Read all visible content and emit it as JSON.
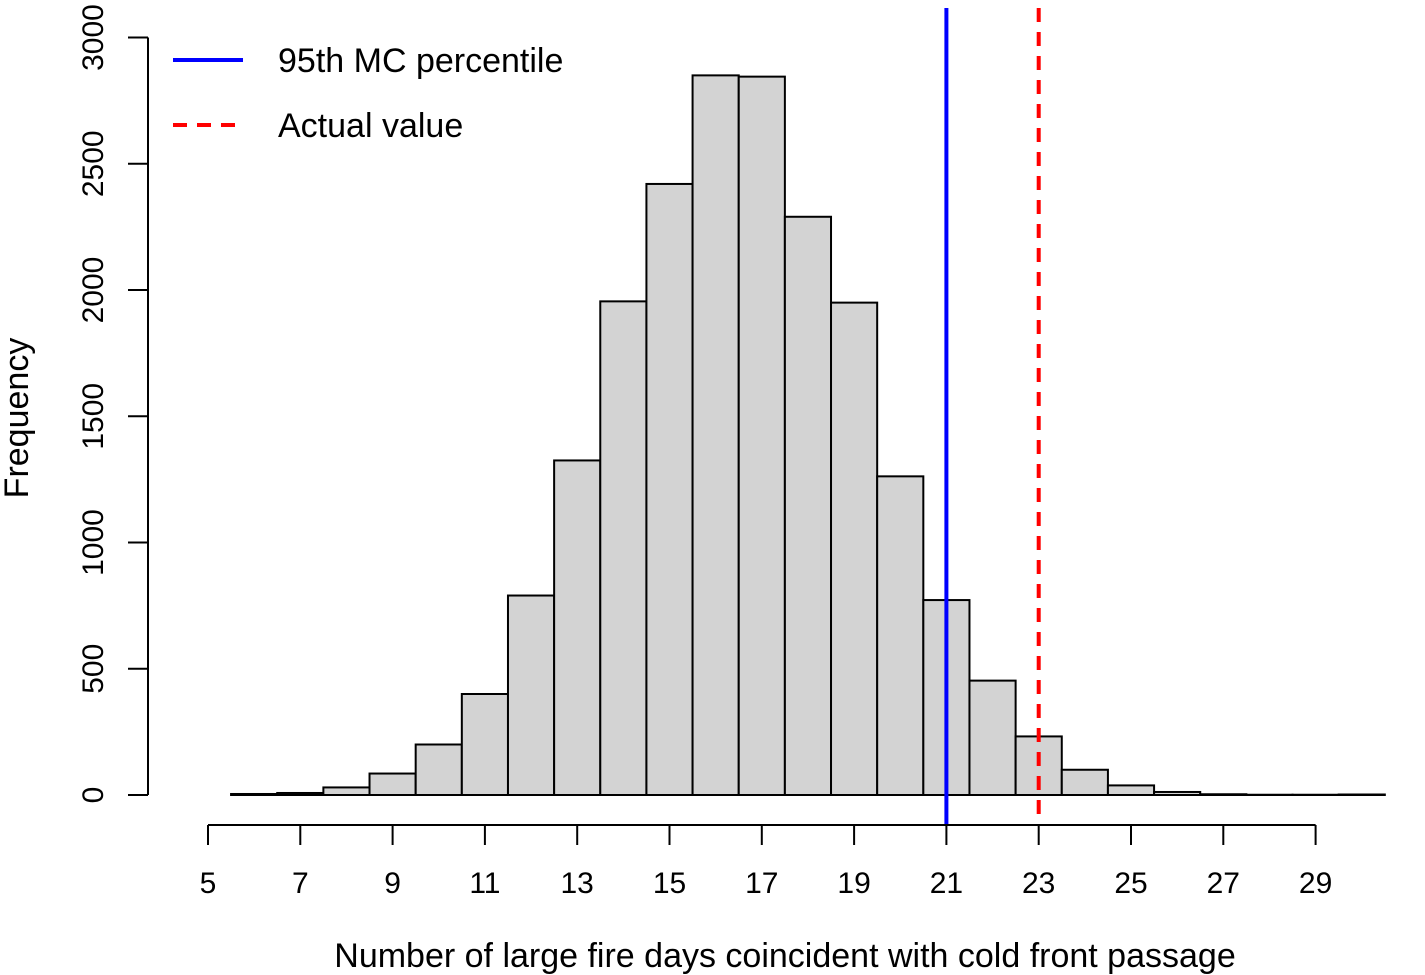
{
  "chart_data": {
    "type": "bar",
    "subtype": "histogram",
    "xlabel": "Number of large fire days coincident with cold front passage",
    "ylabel": "Frequency",
    "x_ticks": [
      5,
      7,
      9,
      11,
      13,
      15,
      17,
      19,
      21,
      23,
      25,
      27,
      29
    ],
    "y_ticks": [
      0,
      500,
      1000,
      1500,
      2000,
      2500,
      3000
    ],
    "xlim": [
      5,
      30
    ],
    "ylim": [
      0,
      3000
    ],
    "bins": [
      {
        "x0": 5.5,
        "x1": 6.5,
        "count": 4
      },
      {
        "x0": 6.5,
        "x1": 7.5,
        "count": 8
      },
      {
        "x0": 7.5,
        "x1": 8.5,
        "count": 30
      },
      {
        "x0": 8.5,
        "x1": 9.5,
        "count": 85
      },
      {
        "x0": 9.5,
        "x1": 10.5,
        "count": 200
      },
      {
        "x0": 10.5,
        "x1": 11.5,
        "count": 400
      },
      {
        "x0": 11.5,
        "x1": 12.5,
        "count": 790
      },
      {
        "x0": 12.5,
        "x1": 13.5,
        "count": 1325
      },
      {
        "x0": 13.5,
        "x1": 14.5,
        "count": 1955
      },
      {
        "x0": 14.5,
        "x1": 15.5,
        "count": 2420
      },
      {
        "x0": 15.5,
        "x1": 16.5,
        "count": 2850
      },
      {
        "x0": 16.5,
        "x1": 17.5,
        "count": 2845
      },
      {
        "x0": 17.5,
        "x1": 18.5,
        "count": 2290
      },
      {
        "x0": 18.5,
        "x1": 19.5,
        "count": 1950
      },
      {
        "x0": 19.5,
        "x1": 20.5,
        "count": 1262
      },
      {
        "x0": 20.5,
        "x1": 21.5,
        "count": 772
      },
      {
        "x0": 21.5,
        "x1": 22.5,
        "count": 453
      },
      {
        "x0": 22.5,
        "x1": 23.5,
        "count": 232
      },
      {
        "x0": 23.5,
        "x1": 24.5,
        "count": 100
      },
      {
        "x0": 24.5,
        "x1": 25.5,
        "count": 38
      },
      {
        "x0": 25.5,
        "x1": 26.5,
        "count": 12
      },
      {
        "x0": 26.5,
        "x1": 27.5,
        "count": 3
      },
      {
        "x0": 27.5,
        "x1": 28.5,
        "count": 1
      },
      {
        "x0": 28.5,
        "x1": 29.5,
        "count": 1
      },
      {
        "x0": 29.5,
        "x1": 30.5,
        "count": 2
      }
    ],
    "reference_lines": [
      {
        "name": "95th MC percentile",
        "x": 21,
        "color": "#0000ff",
        "style": "solid"
      },
      {
        "name": "Actual value",
        "x": 23,
        "color": "#ff0000",
        "style": "dashed"
      }
    ],
    "bar_color": "#d3d3d3",
    "grid": false,
    "legend_position": "top-left"
  }
}
